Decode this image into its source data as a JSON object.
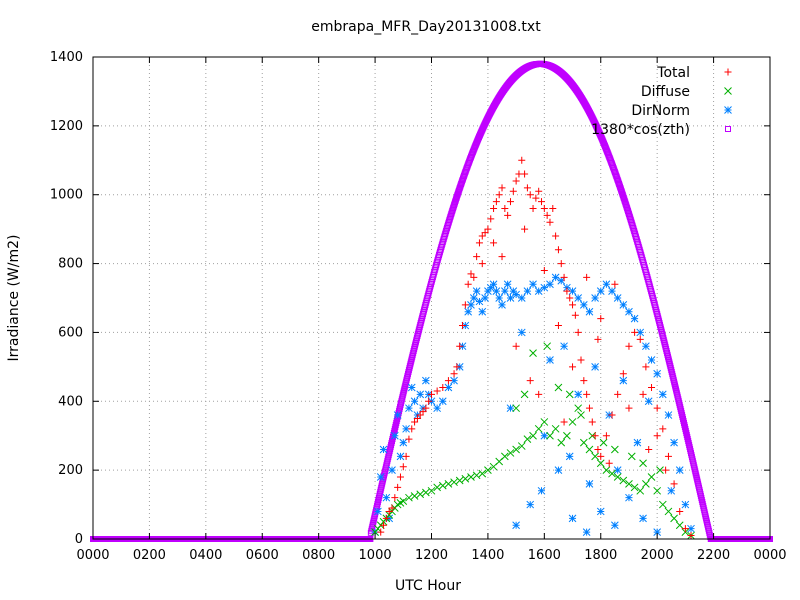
{
  "chart_data": {
    "type": "scatter",
    "title": "embrapa_MFR_Day20131008.txt",
    "xlabel": "UTC Hour",
    "ylabel": "Irradiance (W/m2)",
    "xlim": [
      0,
      24
    ],
    "ylim": [
      0,
      1400
    ],
    "x_ticks": [
      0,
      2,
      4,
      6,
      8,
      10,
      12,
      14,
      16,
      18,
      20,
      22,
      24
    ],
    "x_tick_labels": [
      "0000",
      "0200",
      "0400",
      "0600",
      "0800",
      "1000",
      "1200",
      "1400",
      "1600",
      "1800",
      "2000",
      "2200",
      "0000"
    ],
    "y_ticks": [
      0,
      200,
      400,
      600,
      800,
      1000,
      1200,
      1400
    ],
    "grid": true,
    "legend_position": "top-right",
    "series": [
      {
        "name": "Total",
        "marker": "plus",
        "color": "#ff0000",
        "points": [
          [
            10.2,
            20
          ],
          [
            10.3,
            40
          ],
          [
            10.4,
            60
          ],
          [
            10.5,
            80
          ],
          [
            10.6,
            90
          ],
          [
            10.7,
            120
          ],
          [
            10.8,
            150
          ],
          [
            10.9,
            180
          ],
          [
            11.0,
            210
          ],
          [
            11.1,
            240
          ],
          [
            11.2,
            290
          ],
          [
            11.3,
            320
          ],
          [
            11.4,
            340
          ],
          [
            11.5,
            350
          ],
          [
            11.6,
            360
          ],
          [
            11.7,
            370
          ],
          [
            11.8,
            380
          ],
          [
            11.9,
            400
          ],
          [
            12.0,
            420
          ],
          [
            12.2,
            430
          ],
          [
            12.4,
            440
          ],
          [
            12.6,
            460
          ],
          [
            12.8,
            480
          ],
          [
            12.9,
            500
          ],
          [
            13.0,
            560
          ],
          [
            13.1,
            620
          ],
          [
            13.2,
            680
          ],
          [
            13.3,
            740
          ],
          [
            13.4,
            770
          ],
          [
            13.5,
            760
          ],
          [
            13.6,
            820
          ],
          [
            13.7,
            860
          ],
          [
            13.8,
            880
          ],
          [
            13.9,
            890
          ],
          [
            14.0,
            900
          ],
          [
            14.1,
            930
          ],
          [
            14.2,
            960
          ],
          [
            14.3,
            980
          ],
          [
            14.4,
            1000
          ],
          [
            14.5,
            1020
          ],
          [
            14.6,
            960
          ],
          [
            14.7,
            940
          ],
          [
            14.8,
            980
          ],
          [
            14.9,
            1010
          ],
          [
            15.0,
            1040
          ],
          [
            15.1,
            1060
          ],
          [
            15.2,
            1100
          ],
          [
            15.3,
            1060
          ],
          [
            15.4,
            1020
          ],
          [
            15.5,
            1000
          ],
          [
            15.6,
            960
          ],
          [
            15.7,
            990
          ],
          [
            15.8,
            1010
          ],
          [
            15.9,
            980
          ],
          [
            16.0,
            960
          ],
          [
            16.1,
            940
          ],
          [
            16.2,
            920
          ],
          [
            16.3,
            960
          ],
          [
            16.4,
            880
          ],
          [
            16.5,
            840
          ],
          [
            16.6,
            800
          ],
          [
            16.7,
            760
          ],
          [
            16.8,
            720
          ],
          [
            16.9,
            700
          ],
          [
            17.0,
            680
          ],
          [
            17.1,
            650
          ],
          [
            17.2,
            600
          ],
          [
            17.3,
            520
          ],
          [
            17.4,
            460
          ],
          [
            17.5,
            420
          ],
          [
            17.6,
            380
          ],
          [
            17.7,
            340
          ],
          [
            17.8,
            300
          ],
          [
            17.9,
            260
          ],
          [
            18.0,
            240
          ],
          [
            18.2,
            300
          ],
          [
            18.4,
            360
          ],
          [
            18.6,
            420
          ],
          [
            18.8,
            480
          ],
          [
            19.0,
            560
          ],
          [
            19.2,
            600
          ],
          [
            19.4,
            580
          ],
          [
            19.6,
            500
          ],
          [
            19.8,
            440
          ],
          [
            20.0,
            380
          ],
          [
            20.2,
            320
          ],
          [
            20.4,
            240
          ],
          [
            20.6,
            160
          ],
          [
            20.8,
            80
          ],
          [
            21.0,
            30
          ],
          [
            21.2,
            10
          ],
          [
            14.5,
            820
          ],
          [
            15.0,
            560
          ],
          [
            15.5,
            460
          ],
          [
            16.0,
            780
          ],
          [
            16.5,
            620
          ],
          [
            17.0,
            500
          ],
          [
            17.5,
            760
          ],
          [
            18.0,
            640
          ],
          [
            18.5,
            740
          ],
          [
            19.0,
            380
          ],
          [
            19.5,
            420
          ],
          [
            20.0,
            300
          ],
          [
            13.8,
            800
          ],
          [
            14.2,
            860
          ],
          [
            15.3,
            900
          ],
          [
            15.8,
            420
          ],
          [
            16.7,
            340
          ],
          [
            17.9,
            580
          ],
          [
            18.3,
            220
          ],
          [
            19.7,
            260
          ],
          [
            20.3,
            200
          ]
        ]
      },
      {
        "name": "Diffuse",
        "marker": "cross",
        "color": "#00b000",
        "points": [
          [
            10.0,
            20
          ],
          [
            10.1,
            30
          ],
          [
            10.2,
            40
          ],
          [
            10.3,
            50
          ],
          [
            10.4,
            60
          ],
          [
            10.5,
            70
          ],
          [
            10.6,
            80
          ],
          [
            10.7,
            90
          ],
          [
            10.8,
            100
          ],
          [
            10.9,
            105
          ],
          [
            11.0,
            110
          ],
          [
            11.2,
            120
          ],
          [
            11.4,
            125
          ],
          [
            11.6,
            130
          ],
          [
            11.8,
            135
          ],
          [
            12.0,
            140
          ],
          [
            12.2,
            150
          ],
          [
            12.4,
            155
          ],
          [
            12.6,
            160
          ],
          [
            12.8,
            165
          ],
          [
            13.0,
            170
          ],
          [
            13.2,
            175
          ],
          [
            13.4,
            180
          ],
          [
            13.6,
            185
          ],
          [
            13.8,
            190
          ],
          [
            14.0,
            200
          ],
          [
            14.2,
            210
          ],
          [
            14.4,
            225
          ],
          [
            14.6,
            240
          ],
          [
            14.8,
            250
          ],
          [
            15.0,
            260
          ],
          [
            15.2,
            270
          ],
          [
            15.4,
            290
          ],
          [
            15.6,
            300
          ],
          [
            15.8,
            320
          ],
          [
            16.0,
            340
          ],
          [
            16.2,
            300
          ],
          [
            16.4,
            320
          ],
          [
            16.6,
            280
          ],
          [
            16.8,
            300
          ],
          [
            17.0,
            340
          ],
          [
            17.2,
            380
          ],
          [
            17.4,
            280
          ],
          [
            17.6,
            260
          ],
          [
            17.8,
            240
          ],
          [
            18.0,
            220
          ],
          [
            18.2,
            200
          ],
          [
            18.4,
            190
          ],
          [
            18.6,
            180
          ],
          [
            18.8,
            170
          ],
          [
            19.0,
            160
          ],
          [
            19.2,
            150
          ],
          [
            19.4,
            140
          ],
          [
            19.6,
            160
          ],
          [
            19.8,
            180
          ],
          [
            20.0,
            140
          ],
          [
            20.2,
            100
          ],
          [
            20.4,
            80
          ],
          [
            20.6,
            60
          ],
          [
            20.8,
            40
          ],
          [
            21.0,
            20
          ],
          [
            21.2,
            10
          ],
          [
            15.0,
            380
          ],
          [
            15.3,
            420
          ],
          [
            15.6,
            540
          ],
          [
            16.1,
            560
          ],
          [
            16.5,
            440
          ],
          [
            16.9,
            420
          ],
          [
            17.3,
            360
          ],
          [
            17.7,
            300
          ],
          [
            18.1,
            280
          ],
          [
            18.5,
            260
          ],
          [
            19.1,
            240
          ],
          [
            19.5,
            220
          ],
          [
            20.1,
            200
          ]
        ]
      },
      {
        "name": "DirNorm",
        "marker": "star",
        "color": "#0080ff",
        "points": [
          [
            10.0,
            20
          ],
          [
            10.1,
            80
          ],
          [
            10.2,
            180
          ],
          [
            10.3,
            260
          ],
          [
            10.4,
            120
          ],
          [
            10.5,
            60
          ],
          [
            10.6,
            200
          ],
          [
            10.7,
            300
          ],
          [
            10.8,
            360
          ],
          [
            10.9,
            240
          ],
          [
            11.0,
            280
          ],
          [
            11.1,
            320
          ],
          [
            11.2,
            380
          ],
          [
            11.3,
            440
          ],
          [
            11.4,
            400
          ],
          [
            11.5,
            360
          ],
          [
            11.6,
            420
          ],
          [
            11.7,
            380
          ],
          [
            11.8,
            460
          ],
          [
            11.9,
            420
          ],
          [
            12.0,
            400
          ],
          [
            12.2,
            380
          ],
          [
            12.4,
            400
          ],
          [
            12.6,
            440
          ],
          [
            12.8,
            460
          ],
          [
            13.0,
            500
          ],
          [
            13.1,
            560
          ],
          [
            13.2,
            620
          ],
          [
            13.3,
            660
          ],
          [
            13.4,
            680
          ],
          [
            13.5,
            700
          ],
          [
            13.6,
            720
          ],
          [
            13.7,
            690
          ],
          [
            13.8,
            660
          ],
          [
            13.9,
            700
          ],
          [
            14.0,
            720
          ],
          [
            14.1,
            730
          ],
          [
            14.2,
            740
          ],
          [
            14.3,
            720
          ],
          [
            14.4,
            700
          ],
          [
            14.5,
            680
          ],
          [
            14.6,
            720
          ],
          [
            14.7,
            740
          ],
          [
            14.8,
            700
          ],
          [
            14.9,
            720
          ],
          [
            15.0,
            710
          ],
          [
            15.2,
            700
          ],
          [
            15.4,
            720
          ],
          [
            15.6,
            740
          ],
          [
            15.8,
            720
          ],
          [
            16.0,
            730
          ],
          [
            16.2,
            740
          ],
          [
            16.4,
            760
          ],
          [
            16.6,
            750
          ],
          [
            16.8,
            730
          ],
          [
            17.0,
            720
          ],
          [
            17.2,
            700
          ],
          [
            17.4,
            680
          ],
          [
            17.6,
            660
          ],
          [
            17.8,
            700
          ],
          [
            18.0,
            720
          ],
          [
            18.2,
            740
          ],
          [
            18.4,
            720
          ],
          [
            18.6,
            700
          ],
          [
            18.8,
            680
          ],
          [
            19.0,
            660
          ],
          [
            19.2,
            640
          ],
          [
            19.4,
            600
          ],
          [
            19.6,
            560
          ],
          [
            19.8,
            520
          ],
          [
            20.0,
            480
          ],
          [
            20.2,
            420
          ],
          [
            20.4,
            360
          ],
          [
            20.6,
            280
          ],
          [
            20.8,
            200
          ],
          [
            21.0,
            100
          ],
          [
            21.2,
            30
          ],
          [
            15.0,
            40
          ],
          [
            15.5,
            100
          ],
          [
            16.0,
            300
          ],
          [
            16.5,
            200
          ],
          [
            17.0,
            60
          ],
          [
            17.5,
            20
          ],
          [
            18.0,
            80
          ],
          [
            18.5,
            40
          ],
          [
            19.0,
            120
          ],
          [
            19.5,
            60
          ],
          [
            20.0,
            20
          ],
          [
            16.2,
            520
          ],
          [
            17.2,
            420
          ],
          [
            18.3,
            360
          ],
          [
            19.3,
            280
          ],
          [
            20.5,
            140
          ],
          [
            15.2,
            600
          ],
          [
            16.7,
            560
          ],
          [
            17.8,
            500
          ],
          [
            18.8,
            460
          ],
          [
            19.7,
            400
          ],
          [
            14.8,
            380
          ],
          [
            15.9,
            140
          ],
          [
            16.9,
            240
          ],
          [
            17.6,
            160
          ],
          [
            18.6,
            200
          ]
        ]
      },
      {
        "name": "1380*cos(zth)",
        "marker": "open-square",
        "color": "#c000ff",
        "peak": 1380,
        "peak_hour": 15.85,
        "sunrise_hour": 9.85,
        "sunset_hour": 21.95
      }
    ]
  }
}
